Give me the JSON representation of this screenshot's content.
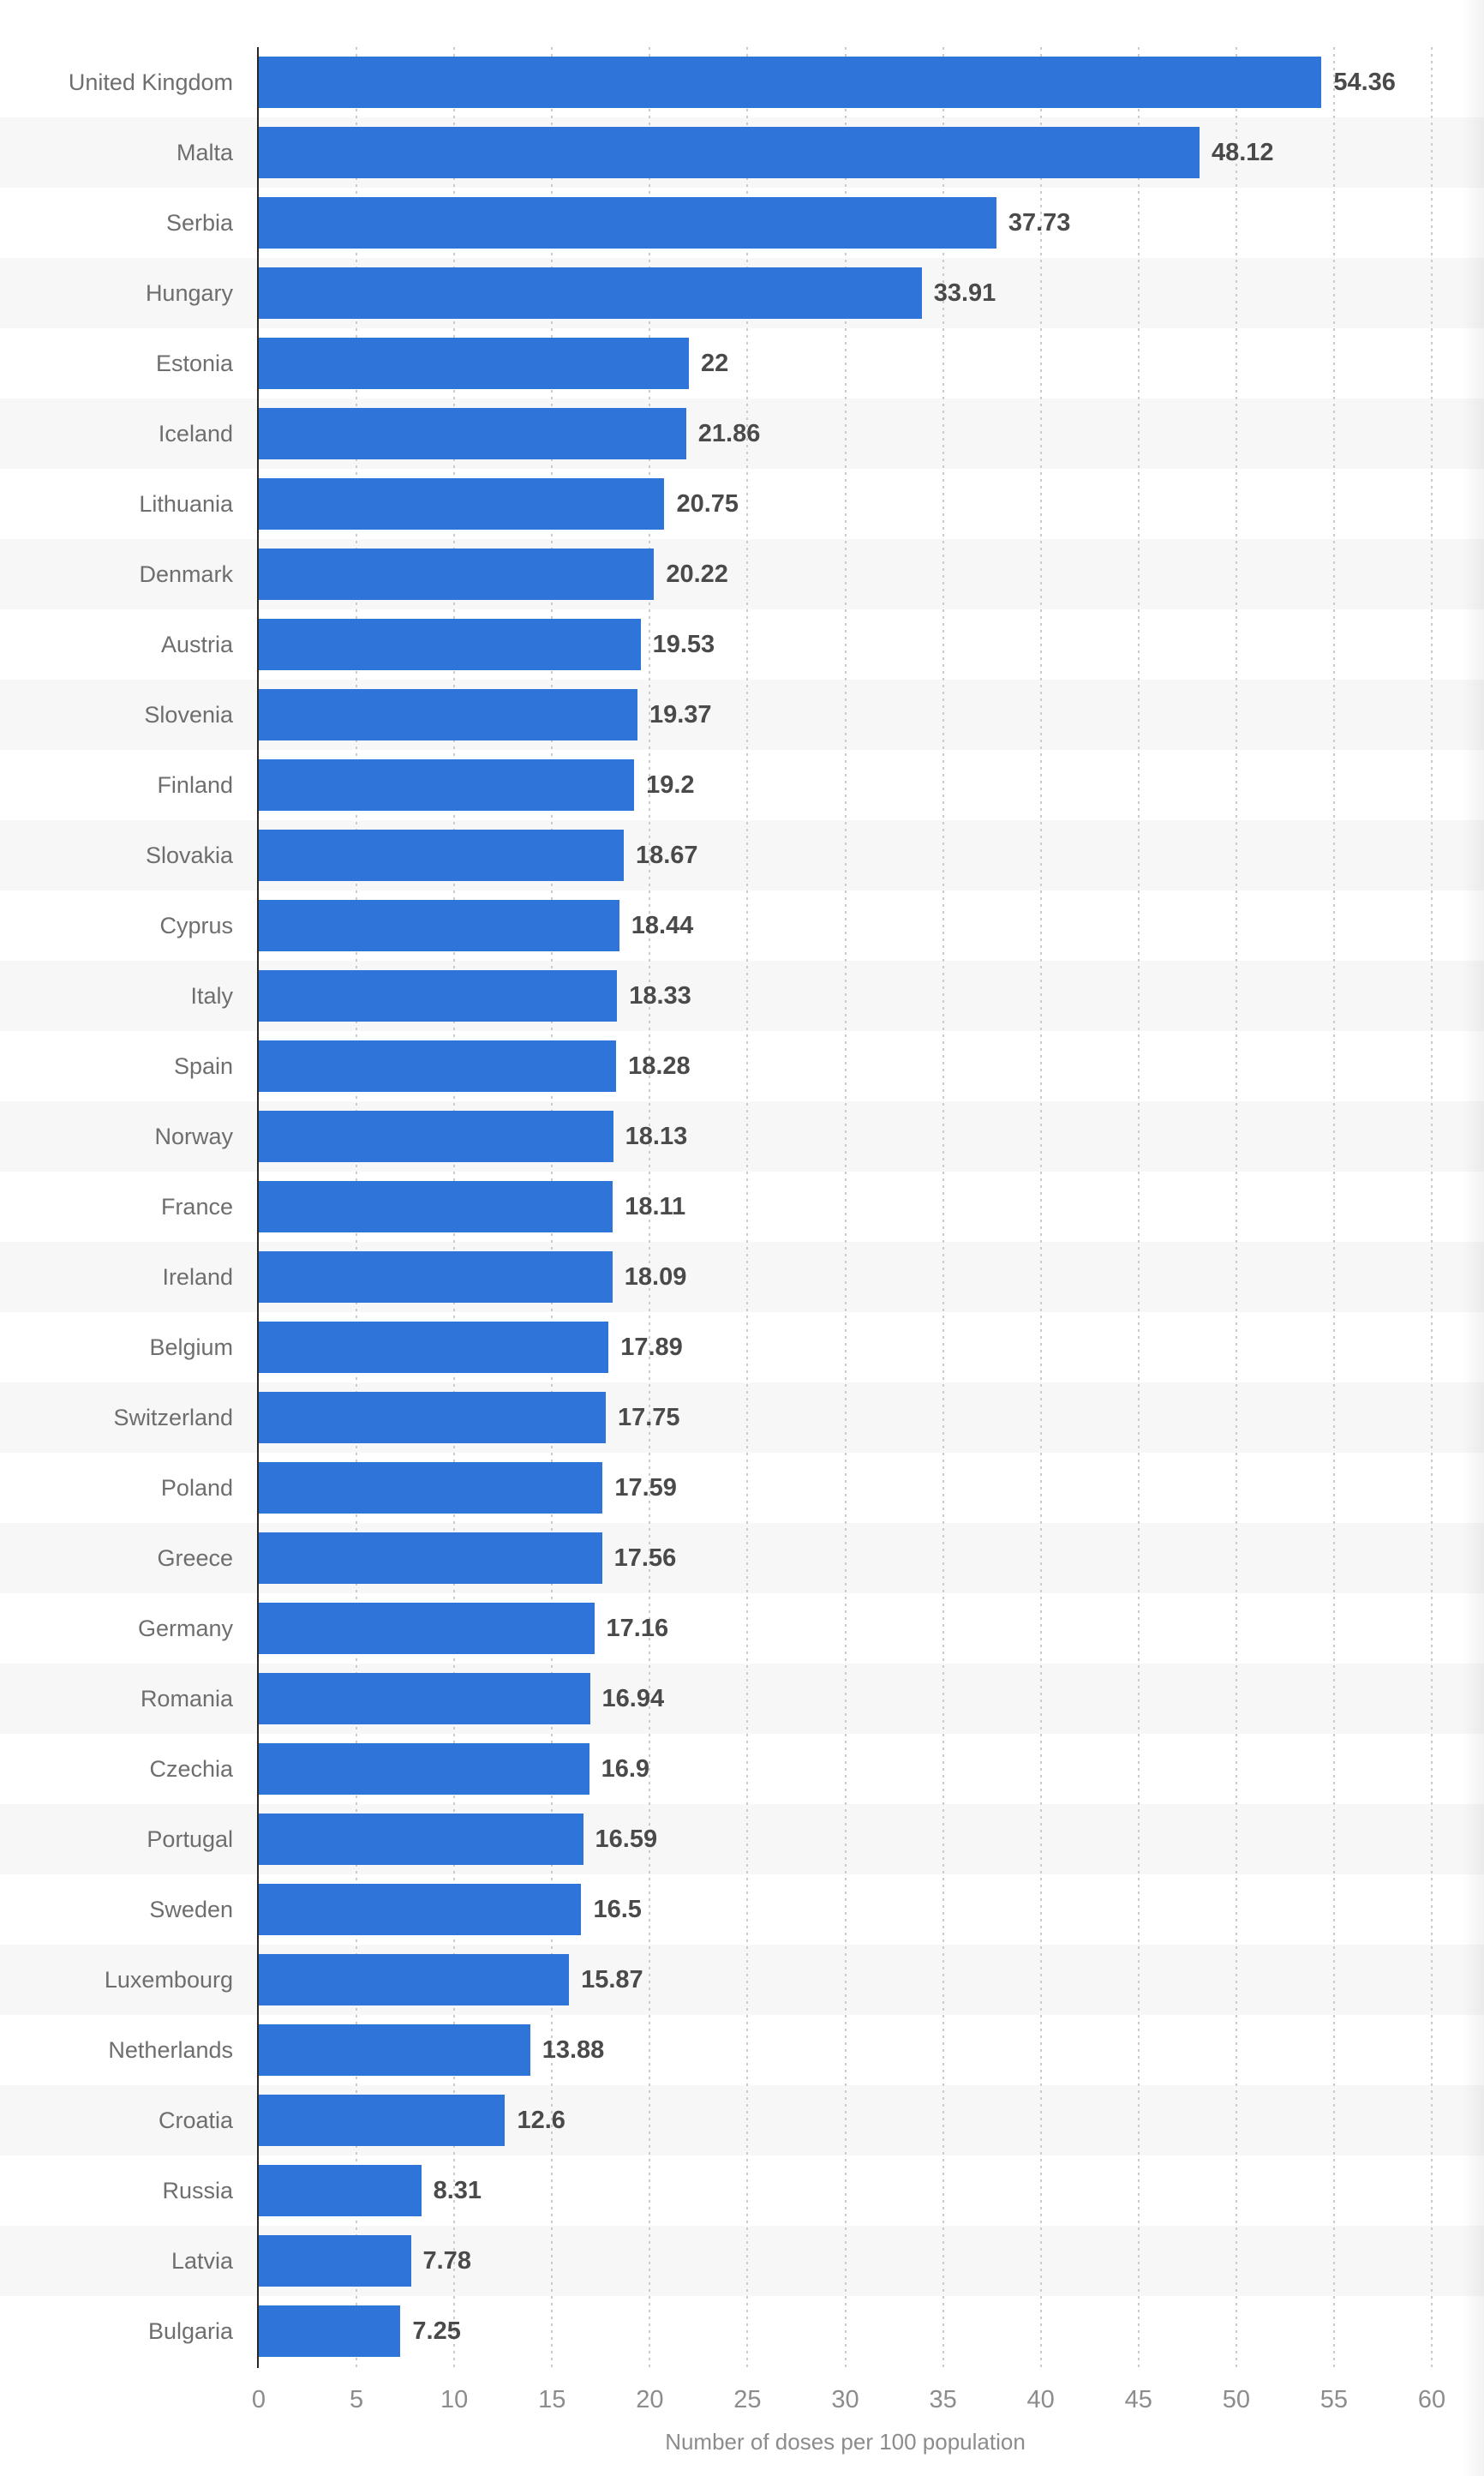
{
  "chart_data": {
    "type": "bar",
    "orientation": "horizontal",
    "title": "",
    "xlabel": "Number of doses per 100 population",
    "ylabel": "",
    "xlim": [
      0,
      60
    ],
    "x_ticks": [
      0,
      5,
      10,
      15,
      20,
      25,
      30,
      35,
      40,
      45,
      50,
      55,
      60
    ],
    "grid": "dotted-vertical-behind-bars",
    "legend": "none",
    "categories": [
      "United Kingdom",
      "Malta",
      "Serbia",
      "Hungary",
      "Estonia",
      "Iceland",
      "Lithuania",
      "Denmark",
      "Austria",
      "Slovenia",
      "Finland",
      "Slovakia",
      "Cyprus",
      "Italy",
      "Spain",
      "Norway",
      "France",
      "Ireland",
      "Belgium",
      "Switzerland",
      "Poland",
      "Greece",
      "Germany",
      "Romania",
      "Czechia",
      "Portugal",
      "Sweden",
      "Luxembourg",
      "Netherlands",
      "Croatia",
      "Russia",
      "Latvia",
      "Bulgaria"
    ],
    "values": [
      54.36,
      48.12,
      37.73,
      33.91,
      22,
      21.86,
      20.75,
      20.22,
      19.53,
      19.37,
      19.2,
      18.67,
      18.44,
      18.33,
      18.28,
      18.13,
      18.11,
      18.09,
      17.89,
      17.75,
      17.59,
      17.56,
      17.16,
      16.94,
      16.9,
      16.59,
      16.5,
      15.87,
      13.88,
      12.6,
      8.31,
      7.78,
      7.25
    ],
    "value_labels": [
      "54.36",
      "48.12",
      "37.73",
      "33.91",
      "22",
      "21.86",
      "20.75",
      "20.22",
      "19.53",
      "19.37",
      "19.2",
      "18.67",
      "18.44",
      "18.33",
      "18.28",
      "18.13",
      "18.11",
      "18.09",
      "17.89",
      "17.75",
      "17.59",
      "17.56",
      "17.16",
      "16.94",
      "16.9",
      "16.59",
      "16.5",
      "15.87",
      "13.88",
      "12.6",
      "8.31",
      "7.78",
      "7.25"
    ],
    "colors": {
      "bar": "#2e74d9",
      "stripe": "#f7f7f7",
      "gridline": "#cbcbcb",
      "axis_line": "#262626",
      "category_label": "#6e6e6e",
      "value_label": "#4a4a4a",
      "tick_label": "#8c8c8c",
      "axis_title": "#8c8c8c",
      "background": "#ffffff"
    }
  }
}
